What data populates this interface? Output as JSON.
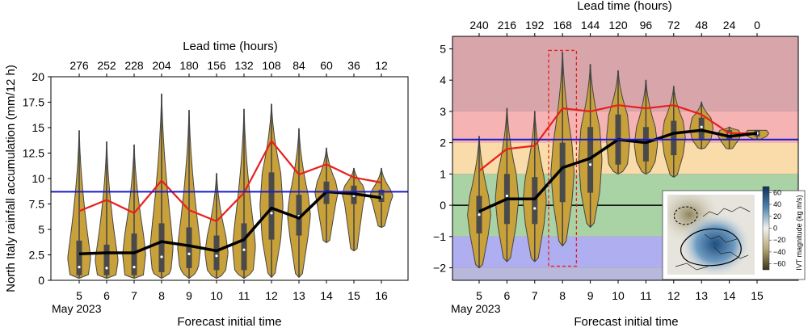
{
  "chart_data": [
    {
      "type": "violin",
      "top_axis_label": "Lead time (hours)",
      "top_ticks": [
        276,
        252,
        228,
        204,
        180,
        156,
        132,
        108,
        84,
        60,
        36,
        12
      ],
      "xlabel": "Forecast initial time",
      "month_label": "May 2023",
      "ylabel": "North Italy rainfall accumulation (mm/12 h)",
      "ylim": [
        0,
        20
      ],
      "yticks": [
        "0",
        "2.5",
        "5",
        "7.5",
        "10",
        "12.5",
        "15",
        "17.5",
        "20"
      ],
      "categories": [
        "5",
        "6",
        "7",
        "8",
        "9",
        "10",
        "11",
        "12",
        "13",
        "14",
        "15",
        "16"
      ],
      "violin_color": "#c9a13b",
      "violins": [
        {
          "min": 0.2,
          "q1": 0.5,
          "median": 1.3,
          "q3": 3.9,
          "max": 14.7
        },
        {
          "min": 0.2,
          "q1": 0.5,
          "median": 1.2,
          "q3": 3.5,
          "max": 13.6
        },
        {
          "min": 0.2,
          "q1": 0.5,
          "median": 1.3,
          "q3": 4.6,
          "max": 13.3
        },
        {
          "min": 0.2,
          "q1": 0.8,
          "median": 2.3,
          "q3": 5.6,
          "max": 18.3
        },
        {
          "min": 0.2,
          "q1": 1.2,
          "median": 2.6,
          "q3": 5.2,
          "max": 16.7
        },
        {
          "min": 0.2,
          "q1": 1.0,
          "median": 2.4,
          "q3": 4.4,
          "max": 10.5
        },
        {
          "min": 0.2,
          "q1": 1.0,
          "median": 3.0,
          "q3": 5.6,
          "max": 16.8
        },
        {
          "min": 0.3,
          "q1": 4.0,
          "median": 6.6,
          "q3": 10.6,
          "max": 17.3
        },
        {
          "min": 0.3,
          "q1": 4.4,
          "median": 6.3,
          "q3": 8.4,
          "max": 14.9
        },
        {
          "min": 3.7,
          "q1": 7.5,
          "median": 8.7,
          "q3": 9.7,
          "max": 13.0
        },
        {
          "min": 2.9,
          "q1": 7.5,
          "median": 8.3,
          "q3": 9.3,
          "max": 11.0
        },
        {
          "min": 5.2,
          "q1": 7.7,
          "median": 8.2,
          "q3": 8.9,
          "max": 11.0
        }
      ],
      "series": [
        {
          "color": "#e8201c",
          "values": [
            6.8,
            7.9,
            6.6,
            9.8,
            6.9,
            5.8,
            8.6,
            13.7,
            10.4,
            11.4,
            10.1,
            9.6
          ]
        },
        {
          "color": "#000000",
          "values": [
            2.6,
            2.7,
            2.7,
            3.8,
            3.4,
            2.9,
            4.0,
            7.1,
            6.1,
            8.7,
            8.5,
            8.1
          ]
        }
      ],
      "hline": {
        "value": 8.7,
        "color": "#1a1acc"
      }
    },
    {
      "type": "violin",
      "top_axis_label": "Lead time (hours)",
      "top_ticks": [
        240,
        216,
        192,
        168,
        144,
        120,
        96,
        72,
        48,
        24,
        0
      ],
      "xlabel": "Forecast initial time",
      "month_label": "May 2023",
      "ylim": [
        -2.4,
        5.4
      ],
      "yticks": [
        "−2",
        "−1",
        "0",
        "1",
        "2",
        "3",
        "4",
        "5"
      ],
      "categories": [
        "5",
        "6",
        "7",
        "8",
        "9",
        "10",
        "11",
        "12",
        "13",
        "14",
        "15"
      ],
      "violin_color": "#c9a13b",
      "bands": [
        {
          "from": 3.0,
          "to": 5.4,
          "color": "#d8a6aa"
        },
        {
          "from": 2.0,
          "to": 3.0,
          "color": "#f6b3b3"
        },
        {
          "from": 1.0,
          "to": 2.0,
          "color": "#f9dcaa"
        },
        {
          "from": -1.0,
          "to": 1.0,
          "color": "#a9d3a5"
        },
        {
          "from": -2.0,
          "to": -1.0,
          "color": "#aeaef0"
        },
        {
          "from": -2.4,
          "to": -2.0,
          "color": "#b8b8da"
        }
      ],
      "violins": [
        {
          "min": -2.0,
          "q1": -0.9,
          "median": -0.3,
          "q3": 0.3,
          "max": 2.2
        },
        {
          "min": -1.8,
          "q1": -0.6,
          "median": 0.3,
          "q3": 1.0,
          "max": 3.1
        },
        {
          "min": -1.8,
          "q1": -0.6,
          "median": -0.1,
          "q3": 0.9,
          "max": 3.0
        },
        {
          "min": -1.3,
          "q1": 0.1,
          "median": 1.2,
          "q3": 2.0,
          "max": 4.9
        },
        {
          "min": -0.7,
          "q1": 0.4,
          "median": 1.3,
          "q3": 2.5,
          "max": 4.5
        },
        {
          "min": 1.0,
          "q1": 1.3,
          "median": 2.1,
          "q3": 2.9,
          "max": 4.3
        },
        {
          "min": 1.0,
          "q1": 1.4,
          "median": 2.0,
          "q3": 2.5,
          "max": 4.0
        },
        {
          "min": 0.9,
          "q1": 1.6,
          "median": 2.3,
          "q3": 2.7,
          "max": 3.8
        },
        {
          "min": 1.8,
          "q1": 2.1,
          "median": 2.5,
          "q3": 2.8,
          "max": 3.3
        },
        {
          "min": 1.8,
          "q1": 2.1,
          "median": 2.3,
          "q3": 2.4,
          "max": 2.5
        },
        {
          "min": 2.1,
          "q1": 2.2,
          "median": 2.3,
          "q3": 2.4,
          "max": 2.4
        }
      ],
      "series": [
        {
          "color": "#e8201c",
          "values": [
            1.1,
            1.8,
            1.9,
            3.1,
            3.0,
            3.2,
            3.1,
            3.2,
            2.9,
            2.3,
            2.3
          ]
        },
        {
          "color": "#000000",
          "values": [
            -0.2,
            0.2,
            0.2,
            1.2,
            1.5,
            2.1,
            2.0,
            2.3,
            2.4,
            2.2,
            2.3
          ]
        }
      ],
      "hline": {
        "value": 2.1,
        "color": "#1a1acc"
      },
      "zero_line": 0,
      "highlight_category": "8",
      "inset_colorbar": {
        "label": "IVT magnitude (kg m/s)",
        "ticks": [
          "60",
          "40",
          "20",
          "0",
          "−20",
          "−40",
          "−60"
        ],
        "range": [
          -70,
          70
        ]
      }
    }
  ]
}
